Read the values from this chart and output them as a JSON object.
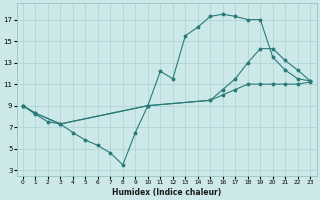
{
  "xlabel": "Humidex (Indice chaleur)",
  "bg_color": "#cce8e8",
  "grid_color": "#b0d4d4",
  "line_color": "#2a7a7a",
  "xlim": [
    -0.5,
    23.5
  ],
  "ylim": [
    2.5,
    18.5
  ],
  "xticks": [
    0,
    1,
    2,
    3,
    4,
    5,
    6,
    7,
    8,
    9,
    10,
    11,
    12,
    13,
    14,
    15,
    16,
    17,
    18,
    19,
    20,
    21,
    22,
    23
  ],
  "yticks": [
    3,
    5,
    7,
    9,
    11,
    13,
    15,
    17
  ],
  "line1_x": [
    0,
    1,
    2,
    3,
    4,
    5,
    6,
    7,
    8,
    9,
    10,
    11,
    12,
    13,
    14,
    15,
    16,
    17,
    18,
    19,
    20,
    21,
    22,
    23
  ],
  "line1_y": [
    9,
    8.2,
    7.5,
    7.3,
    6.5,
    5.8,
    5.3,
    4.6,
    3.5,
    6.5,
    9.0,
    12.2,
    11.5,
    15.5,
    16.3,
    17.3,
    17.5,
    17.3,
    17.0,
    17.0,
    13.5,
    12.3,
    11.5,
    11.3
  ],
  "line2_x": [
    0,
    1,
    3,
    10,
    15,
    16,
    17,
    18,
    19,
    20,
    21,
    22,
    23
  ],
  "line2_y": [
    9,
    8.3,
    7.3,
    9.0,
    9.5,
    10.5,
    11.5,
    13.0,
    14.3,
    14.3,
    13.2,
    12.3,
    11.3
  ],
  "line3_x": [
    0,
    1,
    3,
    10,
    15,
    16,
    17,
    18,
    19,
    20,
    21,
    22,
    23
  ],
  "line3_y": [
    9,
    8.3,
    7.3,
    9.0,
    9.5,
    10.0,
    10.5,
    11.0,
    11.0,
    11.0,
    11.0,
    11.0,
    11.2
  ]
}
